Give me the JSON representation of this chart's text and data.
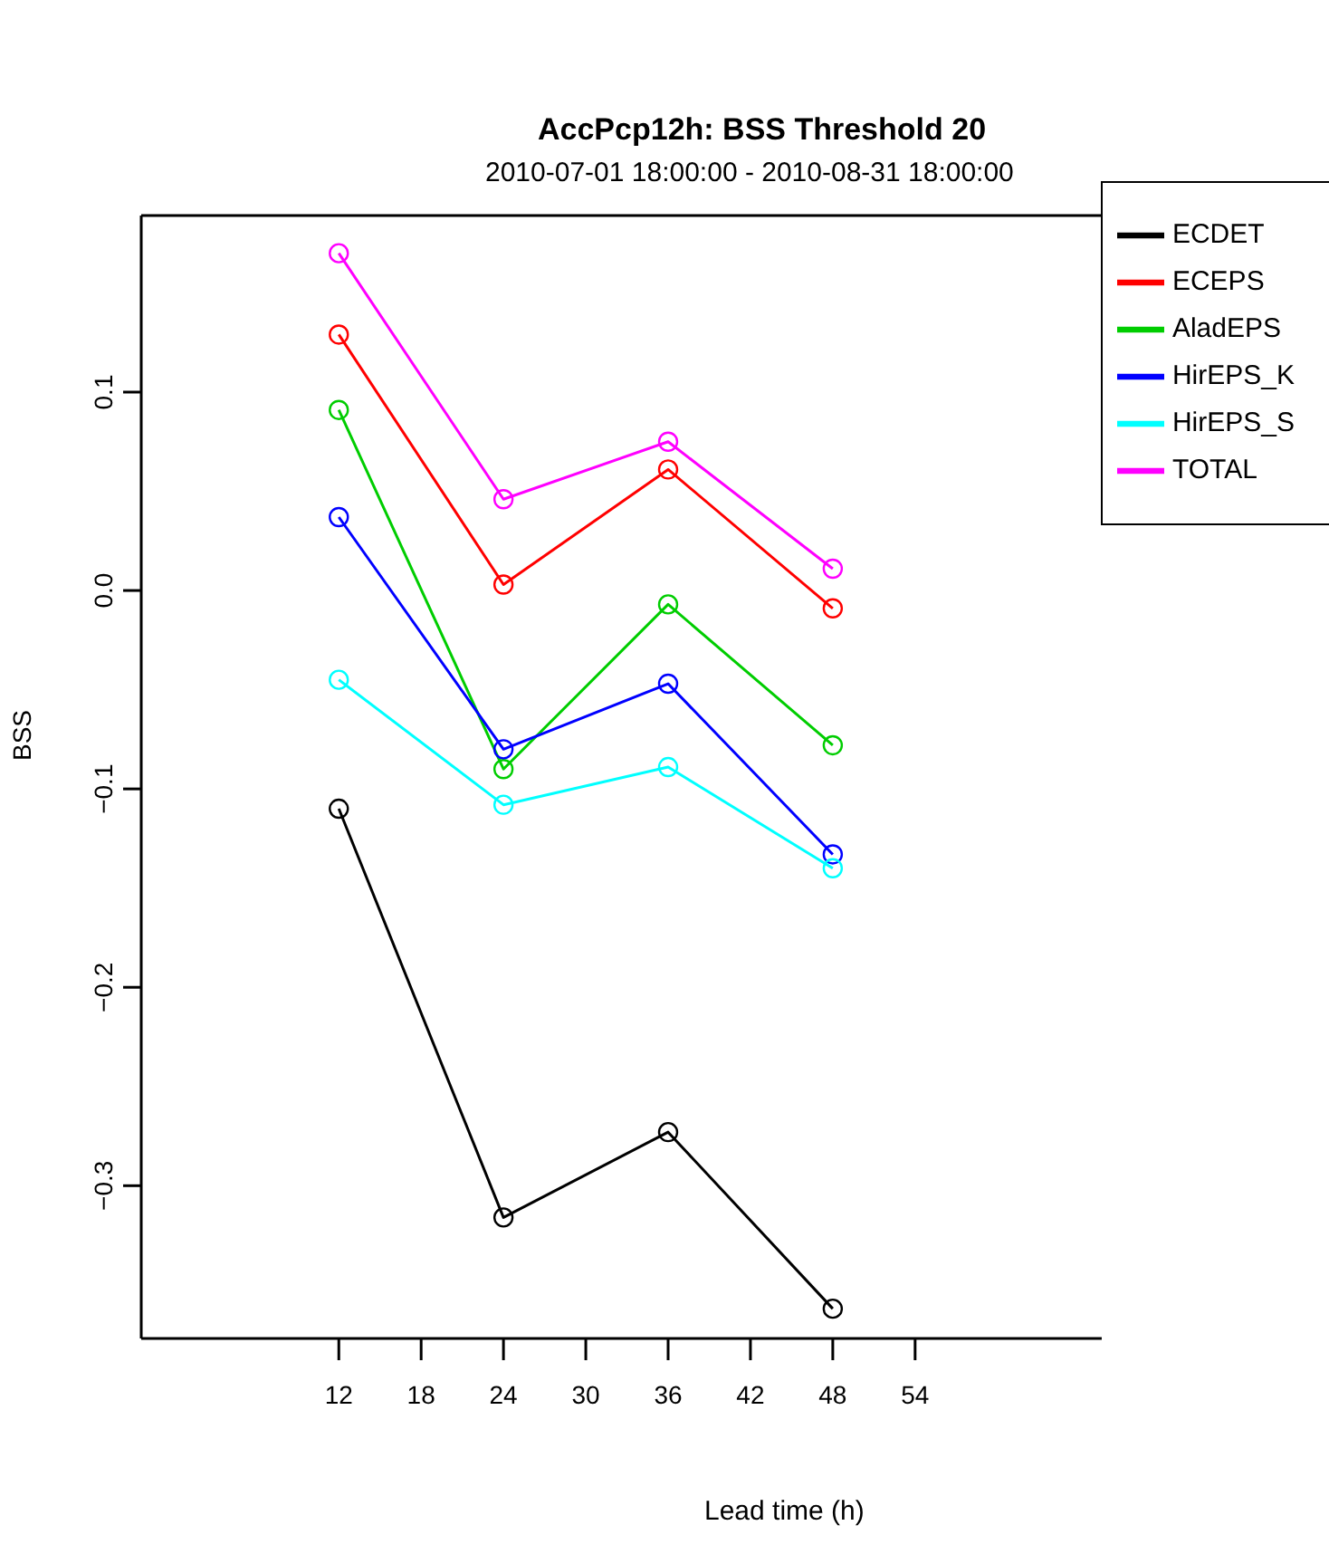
{
  "chart_data": {
    "type": "line",
    "title": "AccPcp12h: BSS Threshold 20",
    "subtitle": "2010-07-01 18:00:00 - 2010-08-31 18:00:00",
    "xlabel": "Lead time (h)",
    "ylabel": "BSS",
    "x": [
      12,
      24,
      36,
      48
    ],
    "series": [
      {
        "name": "ECDET",
        "color": "#000000",
        "values": [
          -0.11,
          -0.316,
          -0.273,
          -0.362
        ]
      },
      {
        "name": "ECEPS",
        "color": "#ff0000",
        "values": [
          0.129,
          0.003,
          0.061,
          -0.009
        ]
      },
      {
        "name": "AladEPS",
        "color": "#00cd00",
        "values": [
          0.091,
          -0.09,
          -0.007,
          -0.078
        ]
      },
      {
        "name": "HirEPS_K",
        "color": "#0000ff",
        "values": [
          0.037,
          -0.08,
          -0.047,
          -0.133
        ]
      },
      {
        "name": "HirEPS_S",
        "color": "#00ffff",
        "values": [
          -0.045,
          -0.108,
          -0.089,
          -0.14
        ]
      },
      {
        "name": "TOTAL",
        "color": "#ff00ff",
        "values": [
          0.17,
          0.046,
          0.075,
          0.011
        ]
      }
    ],
    "xlim": [
      -2.4,
      67.6
    ],
    "xticks": [
      12,
      18,
      24,
      30,
      36,
      42,
      48,
      54
    ],
    "ylim": [
      -0.377,
      0.189
    ],
    "yticks": [
      {
        "value": -0.3,
        "label": "−0.3"
      },
      {
        "value": -0.2,
        "label": "−0.2"
      },
      {
        "value": -0.1,
        "label": "−0.1"
      },
      {
        "value": 0,
        "label": "0.0"
      },
      {
        "value": 0.1,
        "label": "0.1"
      }
    ],
    "legend": "top right",
    "marker": "circle",
    "line_style": "solid",
    "grid": false
  }
}
